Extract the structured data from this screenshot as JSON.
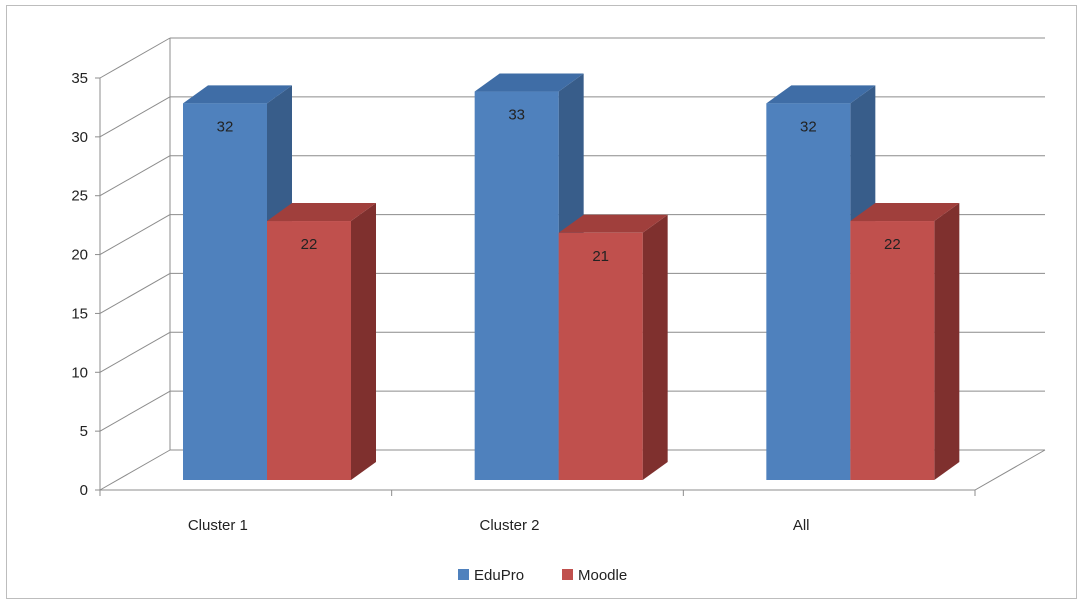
{
  "chart_data": {
    "type": "bar",
    "subtype": "3d-clustered-column",
    "categories": [
      "Cluster 1",
      "Cluster 2",
      "All"
    ],
    "series": [
      {
        "name": "EduPro",
        "values": [
          32,
          33,
          32
        ],
        "color": "#4f81bd",
        "side_color": "#385d8a",
        "top_color": "#3f6da6"
      },
      {
        "name": "Moodle",
        "values": [
          22,
          21,
          22
        ],
        "color": "#c0504d",
        "side_color": "#7f302e",
        "top_color": "#a03f3c"
      }
    ],
    "ylim": [
      0,
      35
    ],
    "yticks": [
      0,
      5,
      10,
      15,
      20,
      25,
      30,
      35
    ],
    "grid": true,
    "legend": "bottom",
    "data_labels": true
  }
}
